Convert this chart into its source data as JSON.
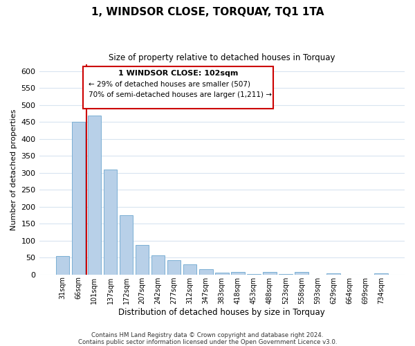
{
  "title": "1, WINDSOR CLOSE, TORQUAY, TQ1 1TA",
  "subtitle": "Size of property relative to detached houses in Torquay",
  "xlabel": "Distribution of detached houses by size in Torquay",
  "ylabel": "Number of detached properties",
  "bar_labels": [
    "31sqm",
    "66sqm",
    "101sqm",
    "137sqm",
    "172sqm",
    "207sqm",
    "242sqm",
    "277sqm",
    "312sqm",
    "347sqm",
    "383sqm",
    "418sqm",
    "453sqm",
    "488sqm",
    "523sqm",
    "558sqm",
    "593sqm",
    "629sqm",
    "664sqm",
    "699sqm",
    "734sqm"
  ],
  "bar_values": [
    55,
    450,
    470,
    310,
    175,
    88,
    57,
    42,
    30,
    15,
    6,
    8,
    2,
    7,
    2,
    8,
    0,
    3,
    0,
    0,
    3
  ],
  "highlight_index": 2,
  "bar_color": "#b8d0e8",
  "bar_edge_color": "#7bafd4",
  "highlight_line_color": "#cc0000",
  "ylim": [
    0,
    620
  ],
  "yticks": [
    0,
    50,
    100,
    150,
    200,
    250,
    300,
    350,
    400,
    450,
    500,
    550,
    600
  ],
  "annotation_line1": "1 WINDSOR CLOSE: 102sqm",
  "annotation_line2": "← 29% of detached houses are smaller (507)",
  "annotation_line3": "70% of semi-detached houses are larger (1,211) →",
  "footer1": "Contains HM Land Registry data © Crown copyright and database right 2024.",
  "footer2": "Contains public sector information licensed under the Open Government Licence v3.0.",
  "background_color": "#ffffff",
  "plot_background": "#ffffff",
  "grid_color": "#d8e4f0",
  "box_color": "#ffffff",
  "box_edge_color": "#cc0000"
}
